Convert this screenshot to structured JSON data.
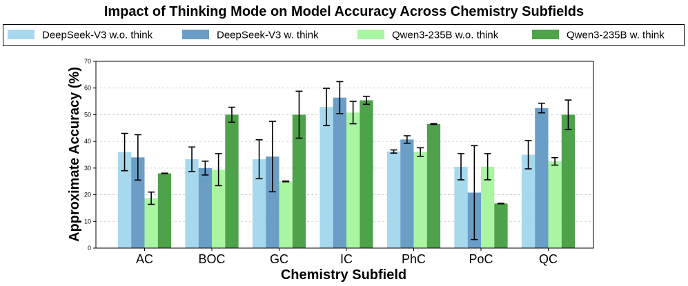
{
  "chart_data": {
    "type": "bar",
    "title": "Impact of Thinking Mode on Model Accuracy Across Chemistry Subfields",
    "xlabel": "Chemistry Subfield",
    "ylabel": "Approximate Accuracy (%)",
    "ylim": [
      0,
      70
    ],
    "yticks": [
      0,
      10,
      20,
      30,
      40,
      50,
      60,
      70
    ],
    "grid": "horizontal-dashed",
    "legend_position": "top",
    "categories": [
      "AC",
      "BOC",
      "GC",
      "IC",
      "PhC",
      "PoC",
      "QC"
    ],
    "series": [
      {
        "name": "DeepSeek-V3 w.o. think",
        "color": "#a6d8ee",
        "values": [
          36.0,
          33.3,
          33.3,
          52.9,
          36.2,
          30.5,
          35.0
        ],
        "errors": [
          7.0,
          4.6,
          7.3,
          7.0,
          0.6,
          4.9,
          5.3
        ]
      },
      {
        "name": "DeepSeek-V3 w. think",
        "color": "#6a9ec6",
        "values": [
          34.0,
          30.0,
          34.3,
          56.4,
          40.7,
          20.8,
          52.5
        ],
        "errors": [
          8.5,
          2.6,
          13.2,
          6.0,
          1.4,
          17.6,
          1.8
        ]
      },
      {
        "name": "Qwen3-235B w.o. think",
        "color": "#a9f5a1",
        "values": [
          18.7,
          29.4,
          25.0,
          50.8,
          36.0,
          30.5,
          32.5
        ],
        "errors": [
          2.3,
          6.0,
          0.15,
          4.2,
          1.6,
          4.9,
          1.4
        ]
      },
      {
        "name": "Qwen3-235B w. think",
        "color": "#4ea24a",
        "values": [
          28.0,
          50.0,
          50.0,
          55.4,
          46.5,
          16.7,
          50.0
        ],
        "errors": [
          0.1,
          2.8,
          8.8,
          1.5,
          0.15,
          0.1,
          5.5
        ]
      }
    ]
  }
}
